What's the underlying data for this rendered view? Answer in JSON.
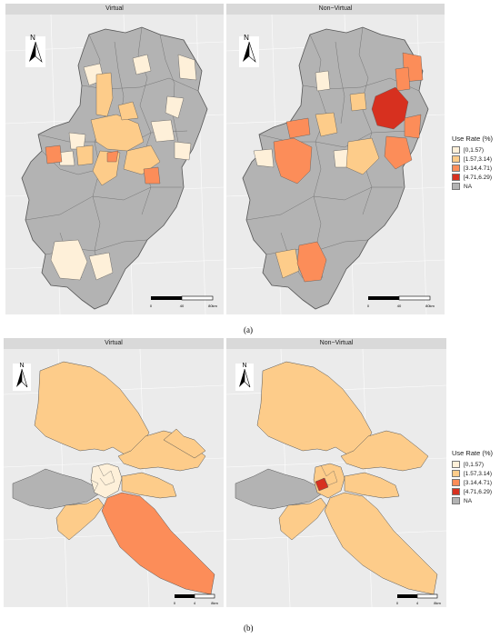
{
  "panel_a": {
    "left_title": "Virtual",
    "right_title": "Non−Virtual",
    "caption": "(a)",
    "scale_labels": [
      "0",
      "40",
      "80km"
    ]
  },
  "panel_b": {
    "left_title": "Virtual",
    "right_title": "Non−Virtual",
    "caption": "(b)",
    "scale_labels": [
      "0",
      "4",
      "8km"
    ]
  },
  "north_label": "N",
  "legend": {
    "title": "Use Rate (%)",
    "items": [
      {
        "label": "[0,1.57)",
        "color": "#fef0d9"
      },
      {
        "label": "[1.57,3.14)",
        "color": "#fdcc8a"
      },
      {
        "label": "[3.14,4.71)",
        "color": "#fc8d59"
      },
      {
        "label": "[4.71,6.29)",
        "color": "#d7301f"
      },
      {
        "label": "NA",
        "color": "#b3b3b3"
      }
    ]
  }
}
